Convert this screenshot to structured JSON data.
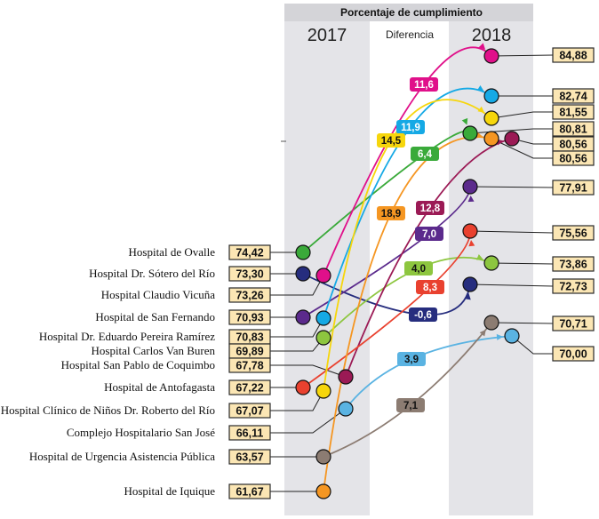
{
  "chart_data": {
    "type": "slope",
    "header": "Porcentaje de cumplimiento",
    "columns": {
      "left": "2017",
      "middle": "Diferencia",
      "right": "2018"
    },
    "rows": [
      {
        "hospital": "Hospital de Ovalle",
        "v2017": "74,42",
        "diff": "6,4",
        "v2018": "80,81",
        "color": "#3aaa3a",
        "diffText": "#ffffff"
      },
      {
        "hospital": "Hospital Dr. Sótero del Río",
        "v2017": "73,30",
        "diff": "-0,6",
        "v2018": "72,73",
        "color": "#262d7e",
        "diffText": "#ffffff"
      },
      {
        "hospital": "Hospital Claudio Vicuña",
        "v2017": "73,26",
        "diff": "11,6",
        "v2018": "84,88",
        "color": "#e0108a",
        "diffText": "#ffffff"
      },
      {
        "hospital": "Hospital de San Fernando",
        "v2017": "70,93",
        "diff": "7,0",
        "v2018": "77,91",
        "color": "#5b2a8c",
        "diffText": "#ffffff"
      },
      {
        "hospital": "Hospital Dr. Eduardo Pereira Ramírez",
        "v2017": "70,83",
        "diff": "11,9",
        "v2018": "82,74",
        "color": "#15a9e5",
        "diffText": "#ffffff"
      },
      {
        "hospital": "Hospital Carlos Van Buren",
        "v2017": "69,89",
        "diff": "4,0",
        "v2018": "73,86",
        "color": "#8dc63f",
        "diffText": "#111111"
      },
      {
        "hospital": "Hospital San Pablo de Coquimbo",
        "v2017": "67,78",
        "diff": "12,8",
        "v2018": "80,56",
        "color": "#9b1a55",
        "diffText": "#ffffff"
      },
      {
        "hospital": "Hospital de Antofagasta",
        "v2017": "67,22",
        "diff": "8,3",
        "v2018": "75,56",
        "color": "#e9412f",
        "diffText": "#ffffff"
      },
      {
        "hospital": "Hospital Clínico de Niños Dr. Roberto del Río",
        "v2017": "67,07",
        "diff": "14,5",
        "v2018": "81,55",
        "color": "#f6d60c",
        "diffText": "#111111"
      },
      {
        "hospital": "Complejo Hospitalario San José",
        "v2017": "66,11",
        "diff": "3,9",
        "v2018": "70,00",
        "color": "#5ab3e2",
        "diffText": "#111111"
      },
      {
        "hospital": "Hospital de Urgencia Asistencia Pública",
        "v2017": "63,57",
        "diff": "7,1",
        "v2018": "70,71",
        "color": "#8c7c72",
        "diffText": "#111111"
      },
      {
        "hospital": "Hospital de Iquique",
        "v2017": "61,67",
        "diff": "18,9",
        "v2018": "80,56",
        "color": "#f59622",
        "diffText": "#111111"
      }
    ],
    "colors": {
      "column_band": "#e4e4e8",
      "header_band": "#d4d4d8",
      "value_box": "#fbe6b4",
      "value_border": "#2a2a2a",
      "leader": "#222222"
    }
  }
}
